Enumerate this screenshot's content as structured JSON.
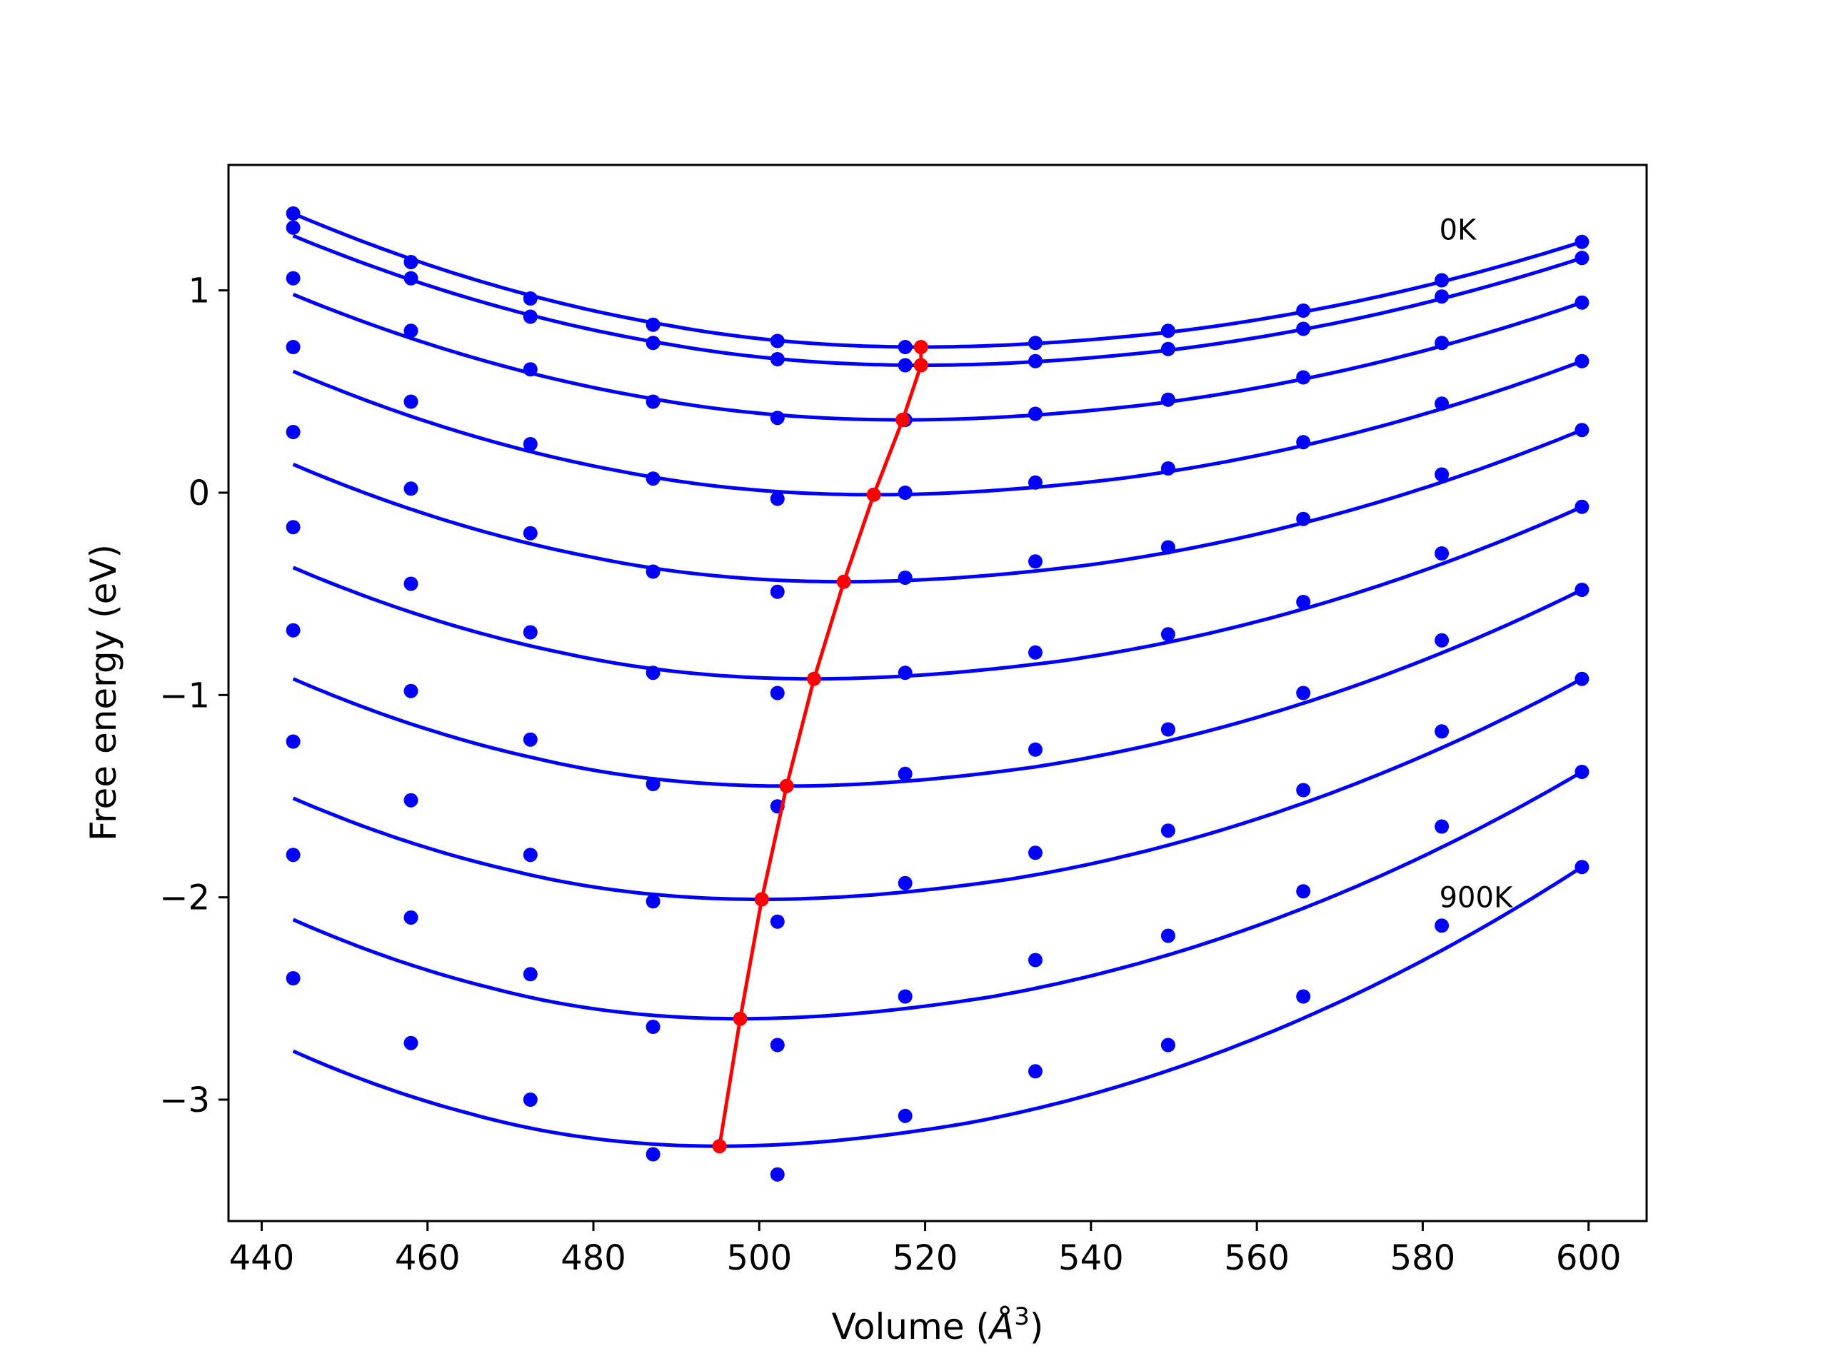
{
  "chart_data": {
    "type": "scatter",
    "xlabel": "Volume (",
    "xlabel_symbol": "Å",
    "xlabel_exp": "3",
    "xlabel_close": ")",
    "ylabel": "Free energy (eV)",
    "xlim": [
      436,
      607
    ],
    "ylim": [
      -3.6,
      1.62
    ],
    "x_ticks": [
      440,
      460,
      480,
      500,
      520,
      540,
      560,
      580,
      600
    ],
    "y_ticks": [
      1,
      0,
      -1,
      -2,
      -3
    ],
    "y_tick_labels": [
      "1",
      "0",
      "−1",
      "−2",
      "−3"
    ],
    "grid": false,
    "annotations": [
      {
        "text": "0K",
        "x": 582,
        "y": 1.3
      },
      {
        "text": "900K",
        "x": 582,
        "y": -2.0
      }
    ],
    "x": [
      443.8,
      458.0,
      472.4,
      487.2,
      502.2,
      517.6,
      533.3,
      549.3,
      565.6,
      582.3,
      599.2
    ],
    "series": [
      {
        "points": [
          1.38,
          1.14,
          0.96,
          0.83,
          0.75,
          0.72,
          0.74,
          0.8,
          0.9,
          1.05,
          1.24
        ],
        "fit_min": [
          519.5,
          0.72
        ]
      },
      {
        "points": [
          1.31,
          1.06,
          0.87,
          0.74,
          0.66,
          0.63,
          0.65,
          0.71,
          0.81,
          0.97,
          1.16
        ],
        "fit_min": [
          519.5,
          0.63
        ]
      },
      {
        "points": [
          1.06,
          0.8,
          0.61,
          0.45,
          0.37,
          0.36,
          0.39,
          0.46,
          0.57,
          0.74,
          0.94
        ],
        "fit_min": [
          517.3,
          0.36
        ]
      },
      {
        "points": [
          0.72,
          0.45,
          0.24,
          0.07,
          -0.03,
          0.0,
          0.05,
          0.12,
          0.25,
          0.44,
          0.65
        ],
        "fit_min": [
          513.8,
          -0.01
        ]
      },
      {
        "points": [
          0.3,
          0.02,
          -0.2,
          -0.39,
          -0.49,
          -0.42,
          -0.34,
          -0.27,
          -0.13,
          0.09,
          0.31
        ],
        "fit_min": [
          510.2,
          -0.44
        ]
      },
      {
        "points": [
          -0.17,
          -0.45,
          -0.69,
          -0.89,
          -0.99,
          -0.89,
          -0.79,
          -0.7,
          -0.54,
          -0.3,
          -0.07
        ],
        "fit_min": [
          506.6,
          -0.92
        ]
      },
      {
        "points": [
          -0.68,
          -0.98,
          -1.22,
          -1.44,
          -1.55,
          -1.39,
          -1.27,
          -1.17,
          -0.99,
          -0.73,
          -0.48
        ],
        "fit_min": [
          503.3,
          -1.45
        ]
      },
      {
        "points": [
          -1.23,
          -1.52,
          -1.79,
          -2.02,
          -2.12,
          -1.93,
          -1.78,
          -1.67,
          -1.47,
          -1.18,
          -0.92
        ],
        "fit_min": [
          500.3,
          -2.01
        ]
      },
      {
        "points": [
          -1.79,
          -2.1,
          -2.38,
          -2.64,
          -2.73,
          -2.49,
          -2.31,
          -2.19,
          -1.97,
          -1.65,
          -1.38
        ],
        "fit_min": [
          497.7,
          -2.6
        ]
      },
      {
        "points": [
          -2.4,
          -2.72,
          -3.0,
          -3.27,
          -3.37,
          -3.08,
          -2.86,
          -2.73,
          -2.49,
          -2.14,
          -1.85
        ],
        "fit_min": [
          495.2,
          -3.23
        ]
      }
    ],
    "colors": {
      "points": "#0000ff",
      "fit": "#0000ff",
      "minima": "#ff0000"
    }
  }
}
